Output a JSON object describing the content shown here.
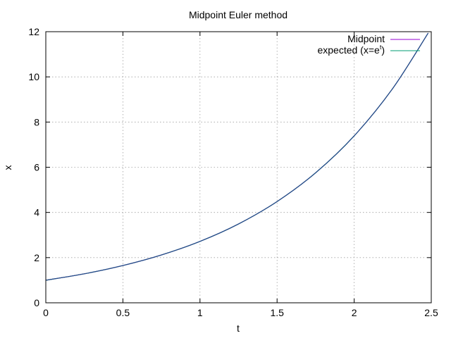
{
  "chart_data": {
    "type": "line",
    "title": "Midpoint Euler method",
    "xlabel": "t",
    "ylabel": "x",
    "xlim": [
      0,
      2.5
    ],
    "ylim": [
      0,
      12
    ],
    "grid": true,
    "legend_position": "top-right",
    "x_ticks": [
      "0",
      "0.5",
      "1",
      "1.5",
      "2",
      "2.5"
    ],
    "y_ticks": [
      "0",
      "2",
      "4",
      "6",
      "8",
      "10",
      "12"
    ],
    "series": [
      {
        "name": "Midpoint",
        "color": "#9400d3",
        "x": [
          0,
          0.25,
          0.5,
          0.75,
          1.0,
          1.25,
          1.5,
          1.75,
          2.0,
          2.25,
          2.48
        ],
        "y": [
          1.0,
          1.284,
          1.649,
          2.117,
          2.718,
          3.49,
          4.482,
          5.755,
          7.389,
          9.488,
          11.94
        ]
      },
      {
        "name_prefix": "expected (x=e",
        "name_sup": "t",
        "name_suffix": ")",
        "color": "#009e73",
        "x": [
          0,
          0.25,
          0.5,
          0.75,
          1.0,
          1.25,
          1.5,
          1.75,
          2.0,
          2.25,
          2.48
        ],
        "y": [
          1.0,
          1.284,
          1.649,
          2.117,
          2.718,
          3.49,
          4.482,
          5.755,
          7.389,
          9.488,
          11.94
        ]
      }
    ]
  }
}
